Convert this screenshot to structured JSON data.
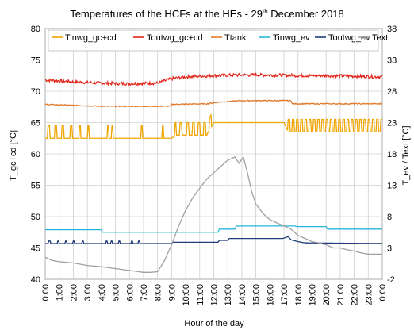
{
  "chart_data": {
    "type": "line",
    "title": "Temperatures of the HCFs at the HEs - 29",
    "title_sup": "th",
    "title_end": " December 2018",
    "xlabel": "Hour of the day",
    "ylabel_left": "T_gc+cd [°C]",
    "ylabel_right": "T_ev / Text [°C]",
    "ylim_left": [
      40,
      80
    ],
    "ylim_right": [
      -2,
      38
    ],
    "yticks_left": [
      "40",
      "45",
      "50",
      "55",
      "60",
      "65",
      "70",
      "75",
      "80"
    ],
    "yticks_right": [
      "-2",
      "3",
      "8",
      "13",
      "18",
      "23",
      "28",
      "33",
      "38"
    ],
    "xlim": [
      0,
      24
    ],
    "x_tick_labels": [
      "0:00",
      "1:00",
      "2:00",
      "3:00",
      "4:00",
      "5:00",
      "6:00",
      "7:00",
      "8:00",
      "9:00",
      "10:00",
      "11:00",
      "12:00",
      "13:00",
      "14:00",
      "15:00",
      "16:00",
      "17:00",
      "18:00",
      "19:00",
      "20:00",
      "21:00",
      "22:00",
      "23:00",
      "0:00"
    ],
    "grid": true,
    "legend_placement": "top",
    "series": [
      {
        "name": "Tinwg_gc+cd",
        "axis": "left",
        "color": "#f0a500",
        "x": [
          0,
          9,
          9.3,
          11.5,
          12.0,
          17.0,
          17.3,
          24
        ],
        "y": [
          62.5,
          62.5,
          63.0,
          63.0,
          65.0,
          65.0,
          63.5,
          63.5
        ],
        "spikes": {
          "amplitude": 2.0,
          "times": [
            0.2,
            0.7,
            1.2,
            1.8,
            2.4,
            3.0,
            4.4,
            4.7,
            6.8,
            8.3,
            9.2,
            9.6,
            10.1,
            10.5,
            10.9,
            11.3,
            11.7,
            17.3,
            17.6,
            17.9,
            18.2,
            18.5,
            18.8,
            19.1,
            19.4,
            19.7,
            20.0,
            20.3,
            20.6,
            20.9,
            21.2,
            21.5,
            21.8,
            22.1,
            22.4,
            22.7,
            23.0,
            23.3,
            23.6,
            23.9
          ]
        }
      },
      {
        "name": "Toutwg_gc+cd",
        "axis": "left",
        "color": "#e3271d",
        "x": [
          0,
          2,
          4,
          6,
          8,
          9,
          10,
          12,
          14,
          16,
          18,
          20,
          22,
          24
        ],
        "y": [
          71.8,
          71.5,
          71.3,
          71.2,
          71.3,
          72.0,
          72.3,
          72.5,
          72.6,
          72.6,
          72.5,
          72.5,
          72.4,
          72.3
        ],
        "noise": 0.5
      },
      {
        "name": "Ttank",
        "axis": "left",
        "color": "#e07a2a",
        "x": [
          0,
          4,
          8.9,
          9.0,
          11.5,
          12.5,
          14,
          17.5,
          17.6,
          24
        ],
        "y": [
          67.9,
          67.6,
          67.6,
          67.9,
          68.0,
          68.3,
          68.5,
          68.5,
          68.0,
          68.0
        ],
        "noise": 0.15
      },
      {
        "name": "Tinwg_ev",
        "axis": "right",
        "color": "#28b6d8",
        "x": [
          0,
          4.0,
          4.1,
          12.3,
          12.4,
          13.5,
          13.6,
          17.8,
          17.9,
          20.0,
          20.1,
          24
        ],
        "y": [
          5.9,
          5.9,
          5.5,
          5.5,
          6.0,
          6.0,
          6.5,
          6.5,
          6.4,
          6.4,
          6.0,
          6.0
        ]
      },
      {
        "name": "Toutwg_ev",
        "axis": "right",
        "color": "#1f3b78",
        "x": [
          0,
          9.0,
          9.1,
          12.3,
          12.4,
          13.0,
          13.1,
          16.9,
          17.3,
          17.5,
          18.0,
          18.5,
          24
        ],
        "y": [
          3.7,
          3.7,
          3.9,
          3.9,
          4.2,
          4.2,
          4.5,
          4.5,
          4.8,
          4.3,
          4.0,
          3.8,
          3.7
        ],
        "dips": [
          0.25,
          0.9,
          1.45,
          2.0,
          2.6,
          4.3,
          4.65,
          5.2,
          6.1,
          6.6
        ]
      },
      {
        "name": "Text",
        "axis": "right",
        "color": "#a0a0a0",
        "x": [
          0,
          0.5,
          1,
          2,
          3,
          4,
          5,
          6,
          7,
          7.5,
          8,
          8.5,
          9,
          9.5,
          10,
          10.5,
          11,
          11.5,
          12,
          12.5,
          13,
          13.5,
          13.8,
          14.1,
          14.4,
          14.7,
          15,
          15.5,
          16,
          16.5,
          17,
          17.5,
          18,
          18.5,
          19,
          19.5,
          20,
          20.5,
          21,
          21.5,
          22,
          22.5,
          23,
          23.5,
          24
        ],
        "y": [
          1.5,
          1.0,
          0.8,
          0.6,
          0.2,
          0.0,
          -0.3,
          -0.6,
          -0.9,
          -0.9,
          -0.8,
          1.0,
          3.5,
          6.5,
          9.0,
          11.0,
          12.5,
          14.0,
          15.0,
          16.0,
          17.0,
          17.5,
          16.5,
          17.5,
          15.0,
          12.0,
          10.0,
          8.5,
          7.5,
          7.0,
          6.5,
          6.0,
          5.0,
          4.5,
          4.0,
          3.8,
          3.5,
          3.0,
          3.0,
          2.7,
          2.5,
          2.2,
          2.0,
          2.0,
          2.0
        ]
      }
    ]
  }
}
